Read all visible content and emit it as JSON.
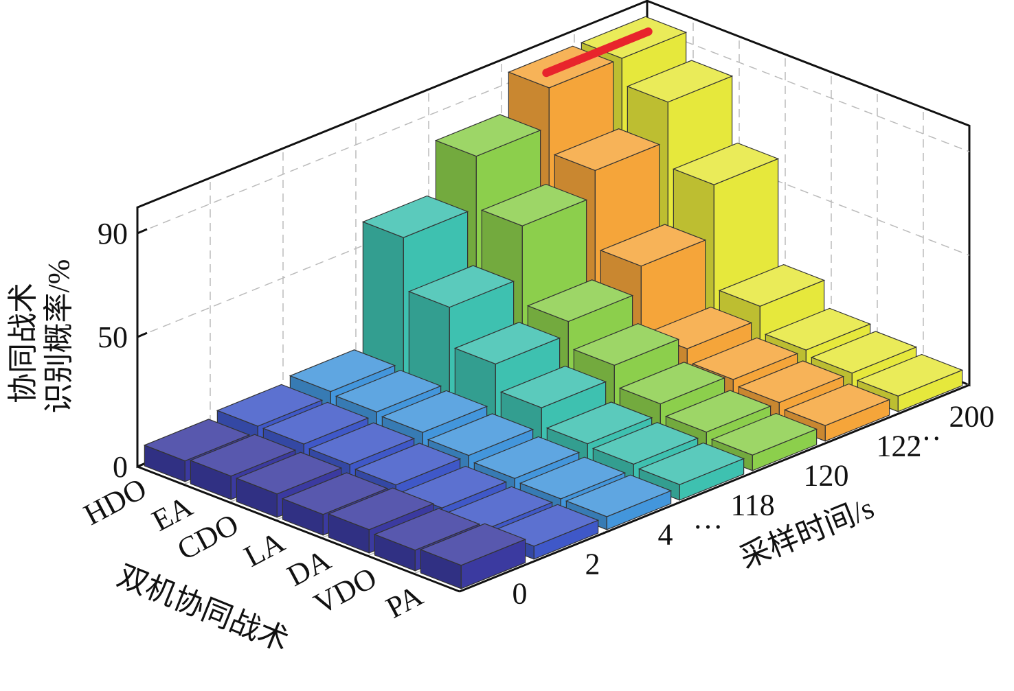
{
  "chart_data": {
    "type": "bar3d",
    "zlabel": [
      "协同战术",
      "识别概率/%"
    ],
    "xlabel": "双机协同战术",
    "ylabel": "采样时间/s",
    "categories": [
      "HDO",
      "EA",
      "CDO",
      "LA",
      "DA",
      "VDO",
      "PA"
    ],
    "rows": [
      "0",
      "2",
      "4",
      "118",
      "120",
      "122",
      "200"
    ],
    "ellipsis": [
      "…",
      "…"
    ],
    "colors": [
      "#3b3aa0",
      "#3f58c8",
      "#4396dc",
      "#3ec1b0",
      "#8ccf4c",
      "#f5a53a",
      "#e6e83c"
    ],
    "values": [
      [
        8,
        9,
        9,
        8,
        9,
        8,
        9
      ],
      [
        10,
        10,
        9,
        8,
        6,
        5,
        5
      ],
      [
        12,
        11,
        10,
        8,
        6,
        5,
        5
      ],
      [
        60,
        40,
        25,
        15,
        8,
        7,
        6
      ],
      [
        80,
        60,
        30,
        20,
        12,
        8,
        6
      ],
      [
        95,
        70,
        40,
        15,
        10,
        8,
        6
      ],
      [
        95,
        85,
        60,
        20,
        10,
        8,
        6
      ]
    ],
    "zlim": [
      0,
      100
    ],
    "zticks": [
      0,
      50,
      90
    ],
    "grid": true
  }
}
